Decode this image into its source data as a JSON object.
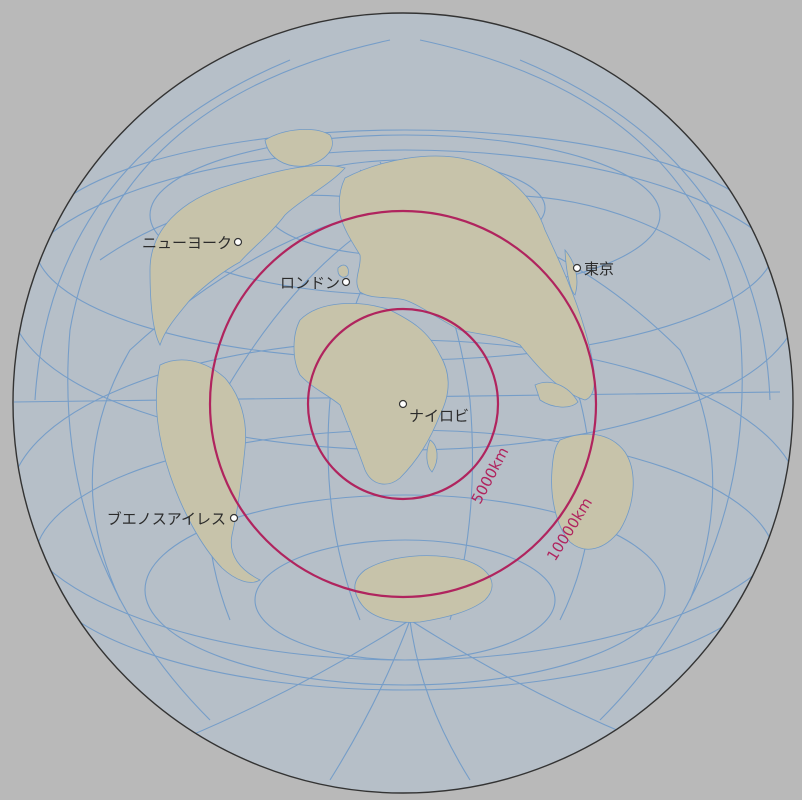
{
  "colors": {
    "background": "#b9b9b9",
    "ocean": "#b6bfc8",
    "land": "#c7c3aa",
    "graticule": "#6f9ac8",
    "outline": "#333333",
    "ring": "#b0245e",
    "label": "#2b2b2b",
    "marker": "#ffffff"
  },
  "distance_rings": [
    {
      "label": "5000km"
    },
    {
      "label": "10000km"
    }
  ],
  "cities": [
    {
      "name": "ニューヨーク"
    },
    {
      "name": "ロンドン"
    },
    {
      "name": "東京"
    },
    {
      "name": "ナイロビ"
    },
    {
      "name": "ブエノスアイレス"
    }
  ]
}
